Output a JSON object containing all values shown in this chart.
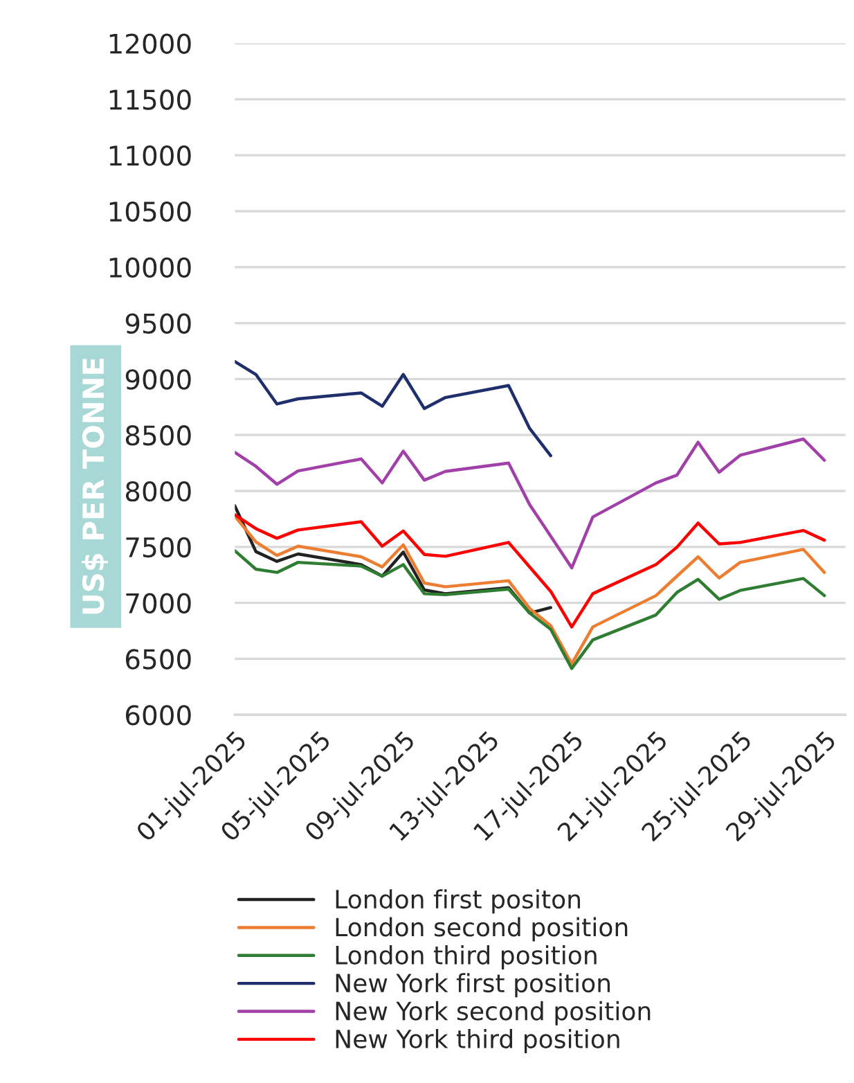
{
  "chart_data": {
    "type": "line",
    "ylabel": "US$ PER TONNE",
    "x": [
      "2025-07-01",
      "2025-07-02",
      "2025-07-03",
      "2025-07-04",
      "2025-07-07",
      "2025-07-08",
      "2025-07-09",
      "2025-07-10",
      "2025-07-11",
      "2025-07-14",
      "2025-07-15",
      "2025-07-16",
      "2025-07-17",
      "2025-07-18",
      "2025-07-21",
      "2025-07-22",
      "2025-07-23",
      "2025-07-24",
      "2025-07-25",
      "2025-07-28",
      "2025-07-29"
    ],
    "series": [
      {
        "name": "London first positon",
        "color": "#222222",
        "values": [
          7866,
          7458,
          7371,
          7437,
          7342,
          7239,
          7454,
          7115,
          7082,
          7136,
          6909,
          6958,
          null,
          null,
          null,
          null,
          null,
          null,
          null,
          null,
          null
        ]
      },
      {
        "name": "London second position",
        "color": "#ed7d31",
        "values": [
          7775,
          7544,
          7424,
          7507,
          7412,
          7321,
          7519,
          7177,
          7144,
          7198,
          6950,
          6797,
          6455,
          6785,
          7065,
          7239,
          7412,
          7222,
          7362,
          7478,
          7272
        ]
      },
      {
        "name": "London third position",
        "color": "#2e7d32",
        "values": [
          7466,
          7301,
          7272,
          7362,
          7329,
          7239,
          7342,
          7082,
          7073,
          7123,
          6909,
          6764,
          6414,
          6669,
          6892,
          7094,
          7210,
          7032,
          7111,
          7218,
          7065
        ]
      },
      {
        "name": "New York first position",
        "color": "#1f2f6b",
        "values": [
          9157,
          9041,
          8777,
          8823,
          8876,
          8757,
          9041,
          8736,
          8835,
          8942,
          8559,
          8315,
          null,
          null,
          null,
          null,
          null,
          null,
          null,
          null,
          null
        ]
      },
      {
        "name": "New York second position",
        "color": "#a040a8",
        "values": [
          8344,
          8220,
          8060,
          8179,
          8286,
          8072,
          8356,
          8097,
          8175,
          8249,
          7878,
          7597,
          7313,
          7767,
          8072,
          8142,
          8435,
          8167,
          8319,
          8464,
          8274
        ]
      },
      {
        "name": "New York third position",
        "color": "#ff0000",
        "values": [
          7787,
          7663,
          7577,
          7651,
          7725,
          7507,
          7643,
          7432,
          7416,
          7540,
          7321,
          7103,
          6785,
          7082,
          7342,
          7498,
          7713,
          7527,
          7540,
          7647,
          7560
        ]
      }
    ],
    "xlim": [
      "2025-07-01",
      "2025-07-30"
    ],
    "xticks": [
      {
        "value": "2025-07-01",
        "label": "01-jul-2025"
      },
      {
        "value": "2025-07-05",
        "label": "05-jul-2025"
      },
      {
        "value": "2025-07-09",
        "label": "09-jul-2025"
      },
      {
        "value": "2025-07-13",
        "label": "13-jul-2025"
      },
      {
        "value": "2025-07-17",
        "label": "17-jul-2025"
      },
      {
        "value": "2025-07-21",
        "label": "21-jul-2025"
      },
      {
        "value": "2025-07-25",
        "label": "25-jul-2025"
      },
      {
        "value": "2025-07-29",
        "label": "29-jul-2025"
      }
    ],
    "ylim": [
      6000,
      12000
    ],
    "yticks": [
      6000,
      6500,
      7000,
      7500,
      8000,
      8500,
      9000,
      9500,
      10000,
      10500,
      11000,
      11500,
      12000
    ],
    "grid": "y",
    "legend": "bottom",
    "line_style": "solid",
    "marker": "none"
  }
}
